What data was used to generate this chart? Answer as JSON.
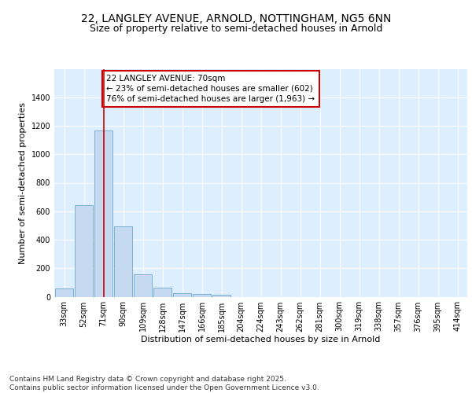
{
  "title_line1": "22, LANGLEY AVENUE, ARNOLD, NOTTINGHAM, NG5 6NN",
  "title_line2": "Size of property relative to semi-detached houses in Arnold",
  "xlabel": "Distribution of semi-detached houses by size in Arnold",
  "ylabel": "Number of semi-detached properties",
  "categories": [
    "33sqm",
    "52sqm",
    "71sqm",
    "90sqm",
    "109sqm",
    "128sqm",
    "147sqm",
    "166sqm",
    "185sqm",
    "204sqm",
    "224sqm",
    "243sqm",
    "262sqm",
    "281sqm",
    "300sqm",
    "319sqm",
    "338sqm",
    "357sqm",
    "376sqm",
    "395sqm",
    "414sqm"
  ],
  "values": [
    60,
    645,
    1165,
    495,
    155,
    62,
    25,
    20,
    14,
    0,
    0,
    0,
    0,
    0,
    0,
    0,
    0,
    0,
    0,
    0,
    0
  ],
  "bar_color": "#c5d9f0",
  "bar_edge_color": "#7bafd4",
  "vline_x_index": 2,
  "vline_color": "#cc0000",
  "annotation_text": "22 LANGLEY AVENUE: 70sqm\n← 23% of semi-detached houses are smaller (602)\n76% of semi-detached houses are larger (1,963) →",
  "annotation_box_color": "#ffffff",
  "annotation_box_edge": "#cc0000",
  "ylim": [
    0,
    1600
  ],
  "yticks": [
    0,
    200,
    400,
    600,
    800,
    1000,
    1200,
    1400
  ],
  "background_color": "#ddeeff",
  "grid_color": "#ffffff",
  "footer_text": "Contains HM Land Registry data © Crown copyright and database right 2025.\nContains public sector information licensed under the Open Government Licence v3.0.",
  "title_fontsize": 10,
  "subtitle_fontsize": 9,
  "axis_label_fontsize": 8,
  "tick_fontsize": 7,
  "annotation_fontsize": 7.5,
  "footer_fontsize": 6.5
}
